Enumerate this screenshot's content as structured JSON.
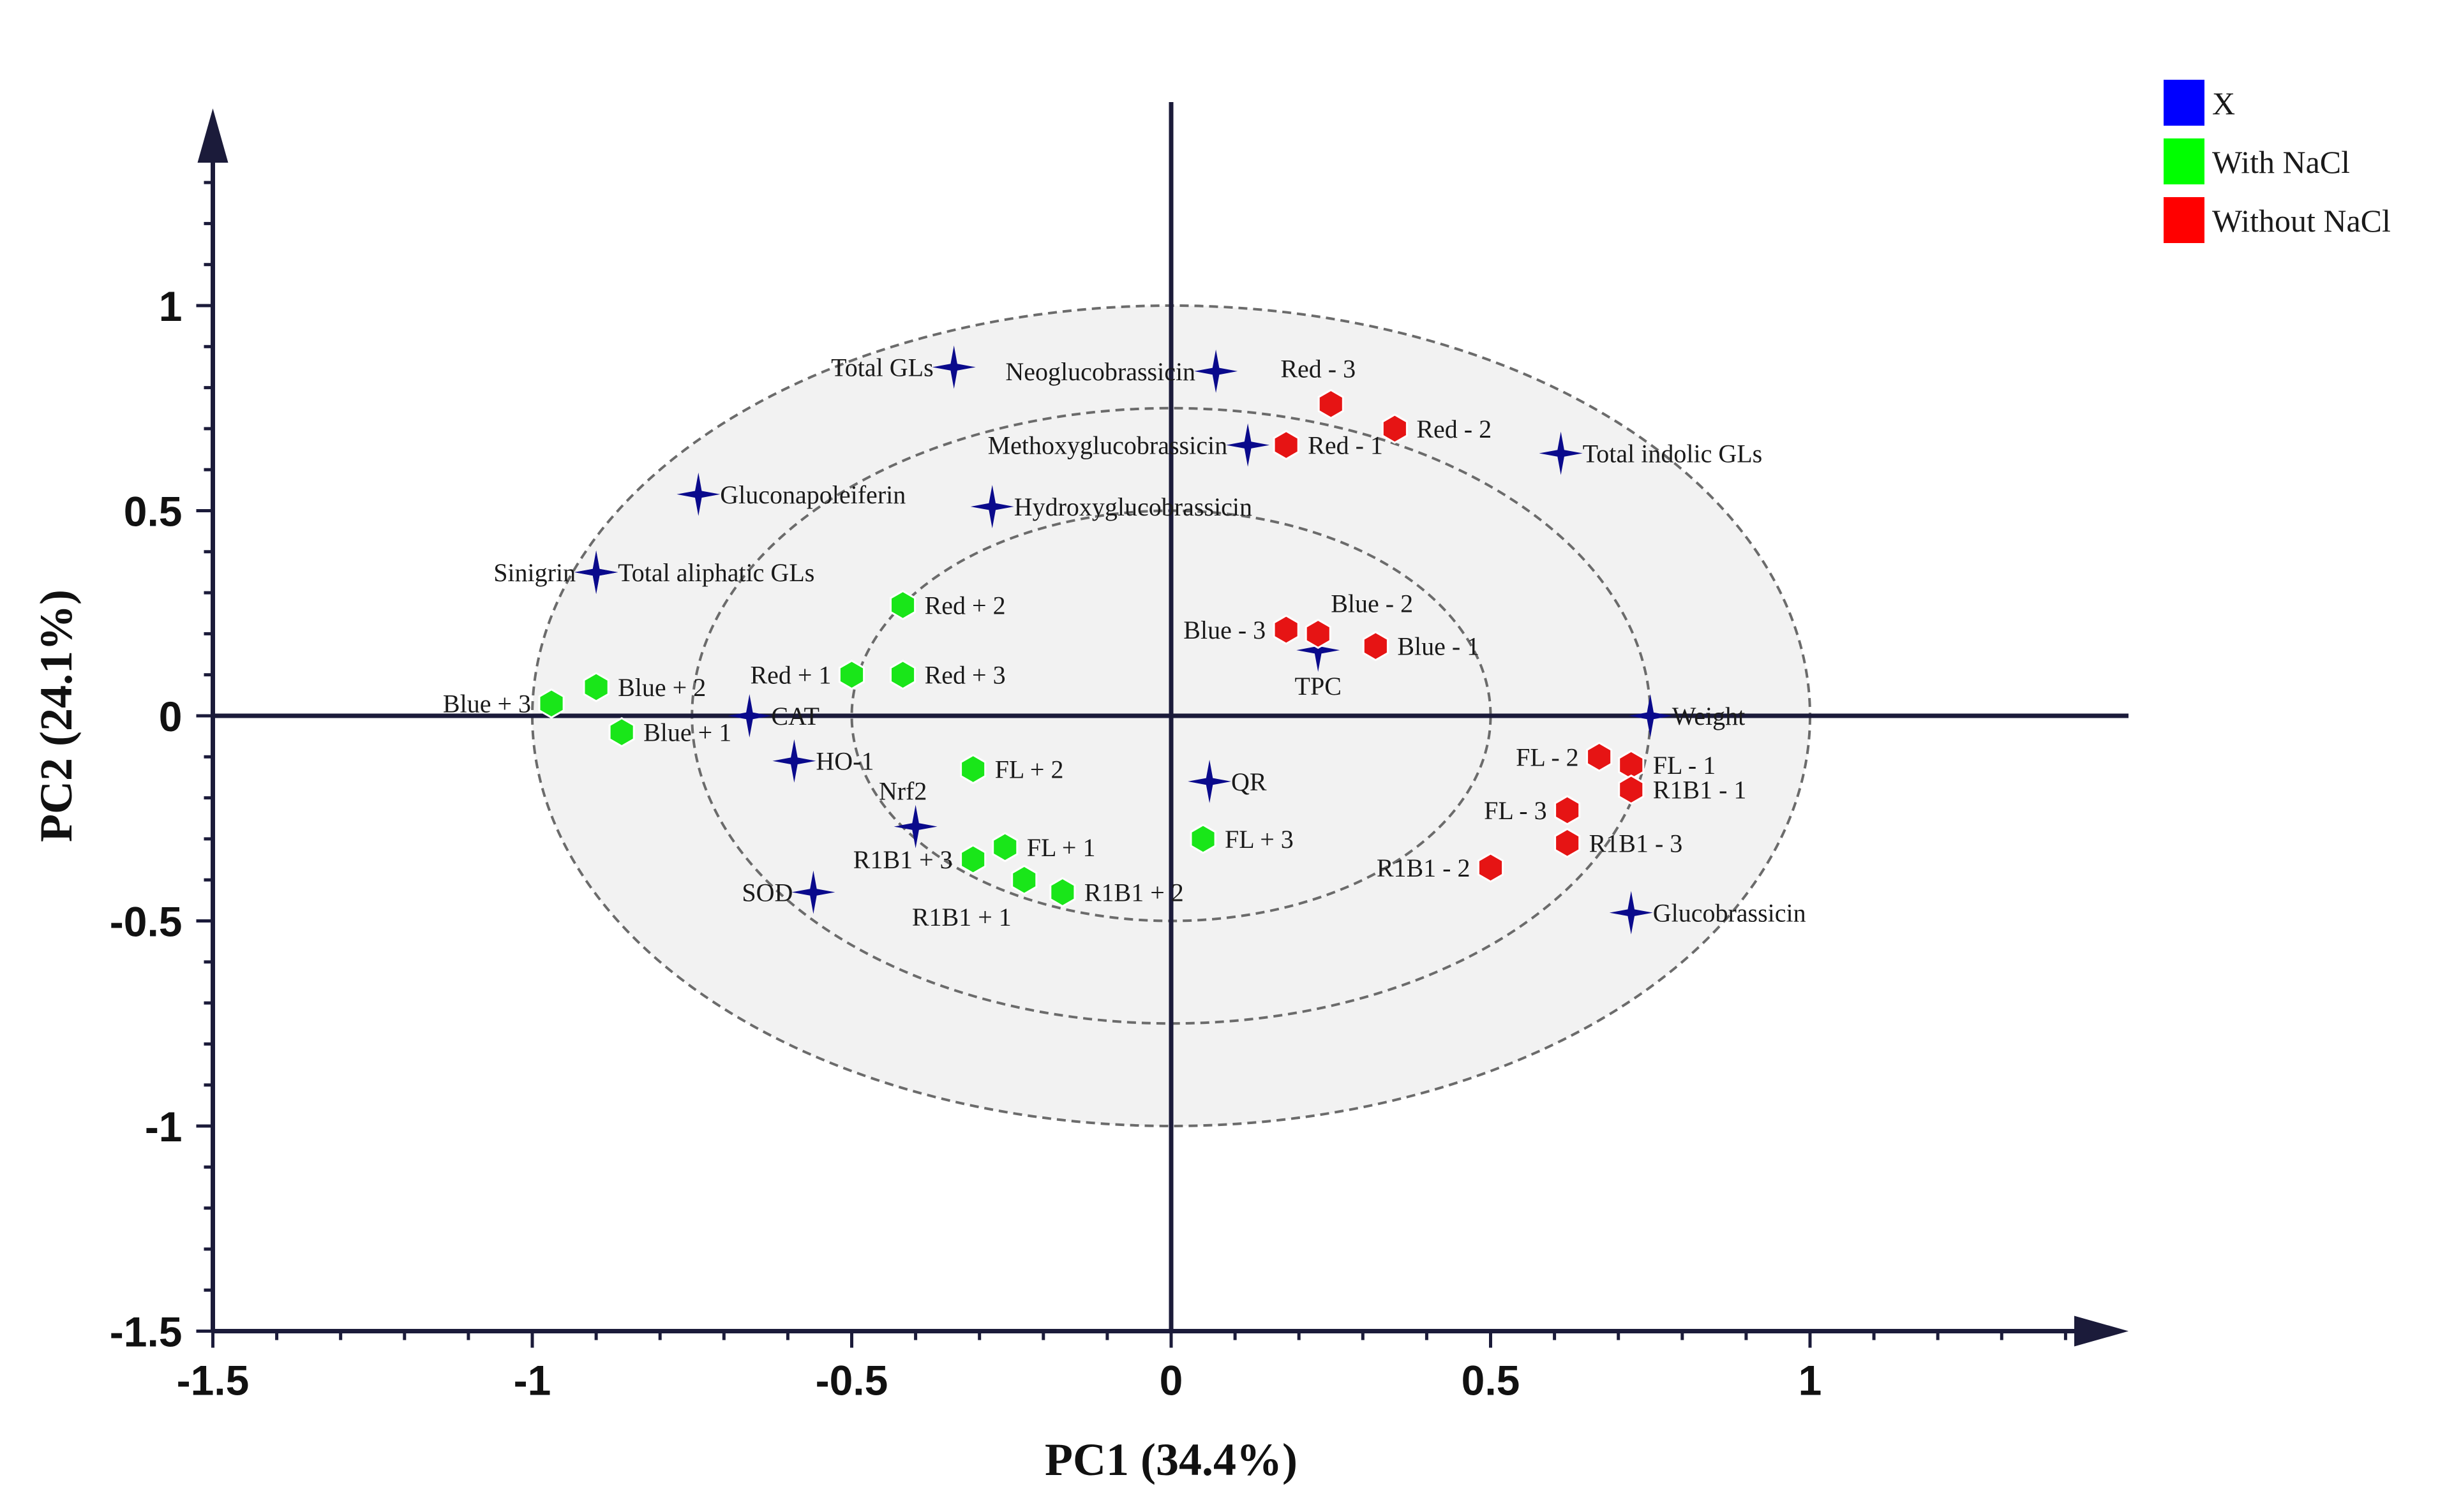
{
  "chart_data": {
    "type": "scatter",
    "title": "",
    "xlabel": "PC1 (34.4%)",
    "ylabel": "PC2 (24.1%)",
    "xlim": [
      -1.5,
      1.5
    ],
    "ylim": [
      -1.5,
      1.5
    ],
    "x_ticks": [
      -1.5,
      -1,
      -0.5,
      0,
      0.5,
      1
    ],
    "x_tick_labels": [
      "-1.5",
      "-1",
      "-0.5",
      "0",
      "0.5",
      "1"
    ],
    "y_ticks": [
      -1.5,
      -1,
      -0.5,
      0,
      0.5,
      1
    ],
    "y_tick_labels": [
      "-1.5",
      "-1",
      "-0.5",
      "0",
      "0.5",
      "1"
    ],
    "grid": false,
    "correlation_circles_r": [
      0.5,
      0.75,
      1.0
    ],
    "legend_position": "top-right",
    "legend": [
      {
        "name": "X",
        "color": "#0000ff"
      },
      {
        "name": "With NaCl",
        "color": "#00ff00"
      },
      {
        "name": "Without NaCl",
        "color": "#ff0000"
      }
    ],
    "series": [
      {
        "name": "X",
        "marker": "star",
        "color": "#0a0a8c",
        "points": [
          {
            "label": "Total GLs",
            "x": -0.34,
            "y": 0.85,
            "anchor": "left"
          },
          {
            "label": "Neoglucobrassicin",
            "x": 0.07,
            "y": 0.84,
            "anchor": "left"
          },
          {
            "label": "Methoxyglucobrassicin",
            "x": 0.12,
            "y": 0.66,
            "anchor": "left"
          },
          {
            "label": "Total indolic GLs",
            "x": 0.61,
            "y": 0.64,
            "anchor": "right"
          },
          {
            "label": "Gluconapoleiferin",
            "x": -0.74,
            "y": 0.54,
            "anchor": "right"
          },
          {
            "label": "Hydroxyglucobrassicin",
            "x": -0.28,
            "y": 0.51,
            "anchor": "right"
          },
          {
            "label": "Sinigrin",
            "x": -0.9,
            "y": 0.35,
            "anchor": "left"
          },
          {
            "label": "Total aliphatic GLs",
            "x": -0.9,
            "y": 0.35,
            "anchor": "right"
          },
          {
            "label": "TPC",
            "x": 0.23,
            "y": 0.16,
            "anchor": "below"
          },
          {
            "label": "CAT",
            "x": -0.66,
            "y": 0.0,
            "anchor": "right"
          },
          {
            "label": "Weight",
            "x": 0.75,
            "y": 0.0,
            "anchor": "right"
          },
          {
            "label": "HO-1",
            "x": -0.59,
            "y": -0.11,
            "anchor": "right"
          },
          {
            "label": "QR",
            "x": 0.06,
            "y": -0.16,
            "anchor": "right"
          },
          {
            "label": "Nrf2",
            "x": -0.4,
            "y": -0.27,
            "anchor": "above-left"
          },
          {
            "label": "SOD",
            "x": -0.56,
            "y": -0.43,
            "anchor": "left"
          },
          {
            "label": "Glucobrassicin",
            "x": 0.72,
            "y": -0.48,
            "anchor": "right"
          }
        ]
      },
      {
        "name": "With NaCl",
        "marker": "hexagon",
        "color": "#19e619",
        "points": [
          {
            "label": "Red + 2",
            "x": -0.42,
            "y": 0.27,
            "anchor": "right"
          },
          {
            "label": "Red + 1",
            "x": -0.5,
            "y": 0.1,
            "anchor": "left"
          },
          {
            "label": "Red + 3",
            "x": -0.42,
            "y": 0.1,
            "anchor": "right"
          },
          {
            "label": "Blue + 2",
            "x": -0.9,
            "y": 0.07,
            "anchor": "right"
          },
          {
            "label": "Blue + 3",
            "x": -0.97,
            "y": 0.03,
            "anchor": "left"
          },
          {
            "label": "Blue + 1",
            "x": -0.86,
            "y": -0.04,
            "anchor": "right"
          },
          {
            "label": "FL + 2",
            "x": -0.31,
            "y": -0.13,
            "anchor": "right"
          },
          {
            "label": "FL + 1",
            "x": -0.26,
            "y": -0.32,
            "anchor": "right"
          },
          {
            "label": "R1B1 + 3",
            "x": -0.31,
            "y": -0.35,
            "anchor": "left"
          },
          {
            "label": "R1B1 + 1",
            "x": -0.23,
            "y": -0.4,
            "anchor": "below-left"
          },
          {
            "label": "R1B1 + 2",
            "x": -0.17,
            "y": -0.43,
            "anchor": "right"
          },
          {
            "label": "FL + 3",
            "x": 0.05,
            "y": -0.3,
            "anchor": "right"
          }
        ]
      },
      {
        "name": "Without NaCl",
        "marker": "hexagon",
        "color": "#e61414",
        "points": [
          {
            "label": "Red - 3",
            "x": 0.25,
            "y": 0.76,
            "anchor": "above-left"
          },
          {
            "label": "Red - 2",
            "x": 0.35,
            "y": 0.7,
            "anchor": "right"
          },
          {
            "label": "Red - 1",
            "x": 0.18,
            "y": 0.66,
            "anchor": "right"
          },
          {
            "label": "Blue - 3",
            "x": 0.18,
            "y": 0.21,
            "anchor": "left"
          },
          {
            "label": "Blue - 2",
            "x": 0.23,
            "y": 0.2,
            "anchor": "above-right"
          },
          {
            "label": "Blue - 1",
            "x": 0.32,
            "y": 0.17,
            "anchor": "right"
          },
          {
            "label": "FL - 2",
            "x": 0.67,
            "y": -0.1,
            "anchor": "left"
          },
          {
            "label": "FL - 1",
            "x": 0.72,
            "y": -0.12,
            "anchor": "right"
          },
          {
            "label": "R1B1 - 1",
            "x": 0.72,
            "y": -0.18,
            "anchor": "right"
          },
          {
            "label": "FL - 3",
            "x": 0.62,
            "y": -0.23,
            "anchor": "left"
          },
          {
            "label": "R1B1 - 3",
            "x": 0.62,
            "y": -0.31,
            "anchor": "right"
          },
          {
            "label": "R1B1 - 2",
            "x": 0.5,
            "y": -0.37,
            "anchor": "left"
          }
        ]
      }
    ]
  }
}
